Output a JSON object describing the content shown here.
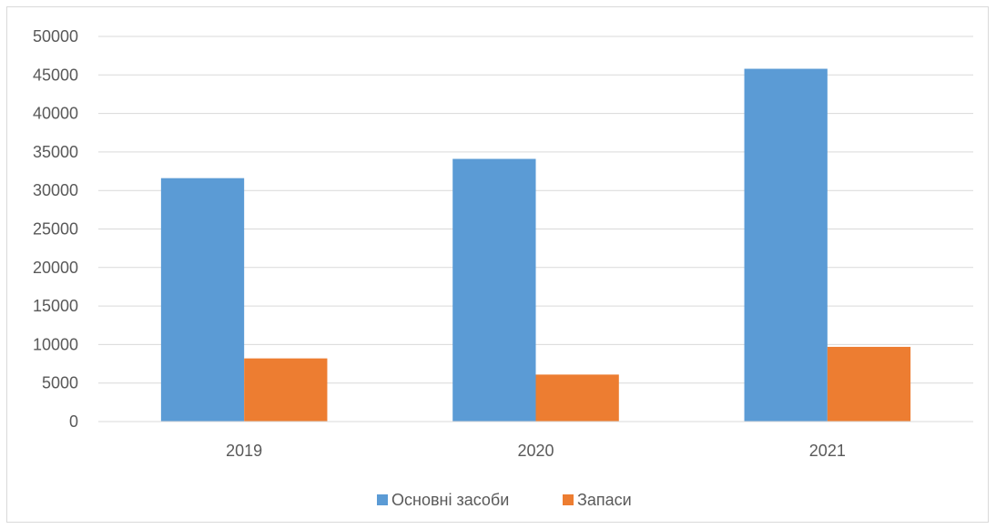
{
  "chart_data": {
    "type": "bar",
    "title": "",
    "xlabel": "",
    "ylabel": "",
    "categories": [
      "2019",
      "2020",
      "2021"
    ],
    "series": [
      {
        "name": "Основні засоби",
        "color": "#5b9bd5",
        "values": [
          31600,
          34100,
          45800
        ]
      },
      {
        "name": "Запаси",
        "color": "#ed7d31",
        "values": [
          8200,
          6100,
          9700
        ]
      }
    ],
    "ylim": [
      0,
      50000
    ],
    "yticks": [
      "0",
      "5000",
      "10000",
      "15000",
      "20000",
      "25000",
      "30000",
      "35000",
      "40000",
      "45000",
      "50000"
    ],
    "grid": true,
    "legend_position": "bottom"
  }
}
